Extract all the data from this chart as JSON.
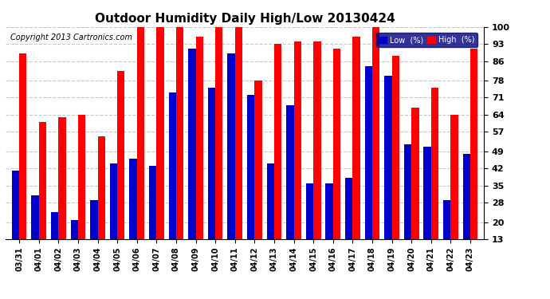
{
  "title": "Outdoor Humidity Daily High/Low 20130424",
  "copyright": "Copyright 2013 Cartronics.com",
  "dates": [
    "03/31",
    "04/01",
    "04/02",
    "04/03",
    "04/04",
    "04/05",
    "04/06",
    "04/07",
    "04/08",
    "04/09",
    "04/10",
    "04/11",
    "04/12",
    "04/13",
    "04/14",
    "04/15",
    "04/16",
    "04/17",
    "04/18",
    "04/19",
    "04/20",
    "04/21",
    "04/22",
    "04/23"
  ],
  "high": [
    89,
    61,
    63,
    64,
    55,
    82,
    100,
    100,
    100,
    96,
    100,
    100,
    78,
    93,
    94,
    94,
    91,
    96,
    100,
    88,
    67,
    75,
    64,
    91
  ],
  "low": [
    41,
    31,
    24,
    21,
    29,
    44,
    46,
    43,
    73,
    91,
    75,
    89,
    72,
    44,
    68,
    36,
    36,
    38,
    84,
    80,
    52,
    51,
    29,
    48
  ],
  "high_color": "#ff0000",
  "low_color": "#0000cc",
  "bg_color": "#ffffff",
  "plot_bg_color": "#ffffff",
  "grid_color": "#c8c8c8",
  "ylim": [
    13,
    100
  ],
  "yticks": [
    13,
    20,
    28,
    35,
    42,
    49,
    57,
    64,
    71,
    78,
    86,
    93,
    100
  ],
  "bar_width": 0.38,
  "title_fontsize": 11,
  "copyright_fontsize": 7,
  "legend_low_label": "Low  (%)",
  "legend_high_label": "High  (%)"
}
